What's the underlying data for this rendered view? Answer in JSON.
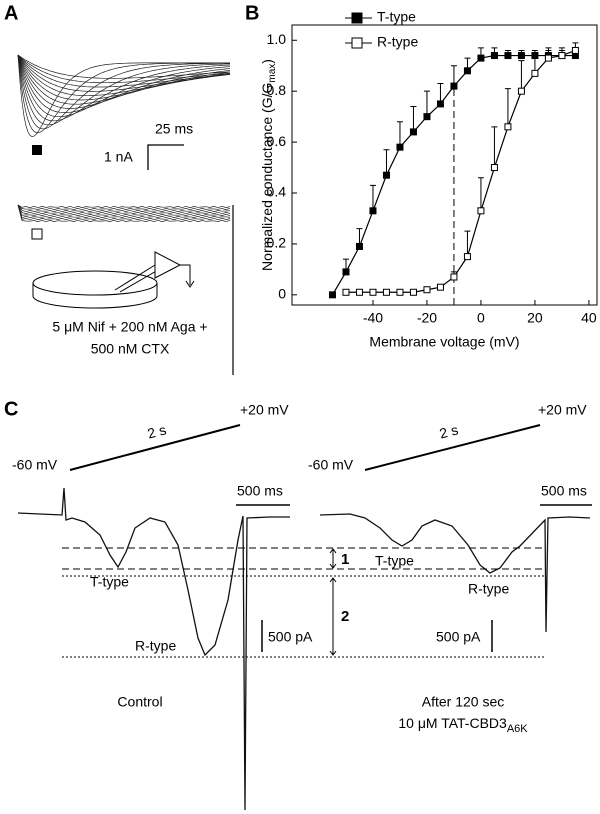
{
  "panels": {
    "A": {
      "label": "A",
      "scale_time": "25 ms",
      "scale_current": "1 nA",
      "condition_line1": "5 μM Nif + 200 nM Aga +",
      "condition_line2": "500 nM CTX"
    },
    "C": {
      "label": "C",
      "hold_left": "-60 mV",
      "ramp_left": "2 s",
      "end_left": "+20 mV",
      "time_bar_left": "500 ms",
      "hold_right": "-60 mV",
      "ramp_right": "2 s",
      "end_right": "+20 mV",
      "time_bar_right": "500 ms",
      "marker_1": "1",
      "marker_2": "2",
      "t_left": "T-type",
      "r_left": "R-type",
      "t_right": "T-type",
      "r_right": "R-type",
      "current_bar_left": "500 pA",
      "current_bar_right": "500 pA",
      "condition_left": "Control",
      "condition_right_line1": "After 120 sec",
      "condition_right_line2": "10 μM TAT-CBD3",
      "condition_right_sub": "A6K"
    }
  },
  "chart_data": {
    "type": "line",
    "panel_label": "B",
    "xlabel": "Membrane voltage (mV)",
    "ylabel": "Normalized conductance (G/G",
    "ylabel_sub": "max",
    "ylabel_end": ")",
    "xlim": [
      -70,
      43
    ],
    "ylim": [
      -0.04,
      1.06
    ],
    "xticks": [
      -40,
      -20,
      0,
      20,
      40
    ],
    "yticks": [
      0,
      0.2,
      0.4,
      0.6,
      0.8,
      {
        "value": 1,
        "label": "1.0"
      }
    ],
    "reference_line_x": -10,
    "series": [
      {
        "name": "T-type",
        "color": "#000000",
        "marker_fill": "#000000",
        "x": [
          -55,
          -50,
          -45,
          -40,
          -35,
          -30,
          -25,
          -20,
          -15,
          -10,
          -5,
          0,
          5,
          10,
          15,
          20,
          25,
          30,
          35
        ],
        "values": [
          0.0,
          0.09,
          0.19,
          0.33,
          0.47,
          0.58,
          0.64,
          0.7,
          0.75,
          0.82,
          0.88,
          0.93,
          0.94,
          0.94,
          0.94,
          0.94,
          0.94,
          0.94,
          0.94
        ],
        "errors": [
          0,
          0.05,
          0.07,
          0.1,
          0.1,
          0.1,
          0.1,
          0.1,
          0.08,
          0.08,
          0.05,
          0.04,
          0.03,
          0.02,
          0.02,
          0.02,
          0.02,
          0.02,
          0.02
        ]
      },
      {
        "name": "R-type",
        "color": "#000000",
        "marker_fill": "#ffffff",
        "x": [
          -50,
          -45,
          -40,
          -35,
          -30,
          -25,
          -20,
          -15,
          -10,
          -5,
          0,
          5,
          10,
          15,
          20,
          25,
          30,
          35
        ],
        "values": [
          0.01,
          0.01,
          0.01,
          0.01,
          0.01,
          0.01,
          0.02,
          0.03,
          0.07,
          0.15,
          0.33,
          0.5,
          0.66,
          0.8,
          0.87,
          0.93,
          0.94,
          0.96
        ],
        "errors": [
          0.01,
          0.01,
          0.01,
          0.01,
          0.01,
          0.01,
          0.01,
          0.01,
          0.02,
          0.1,
          0.13,
          0.16,
          0.15,
          0.12,
          0.07,
          0.04,
          0.03,
          0.03
        ]
      }
    ]
  }
}
